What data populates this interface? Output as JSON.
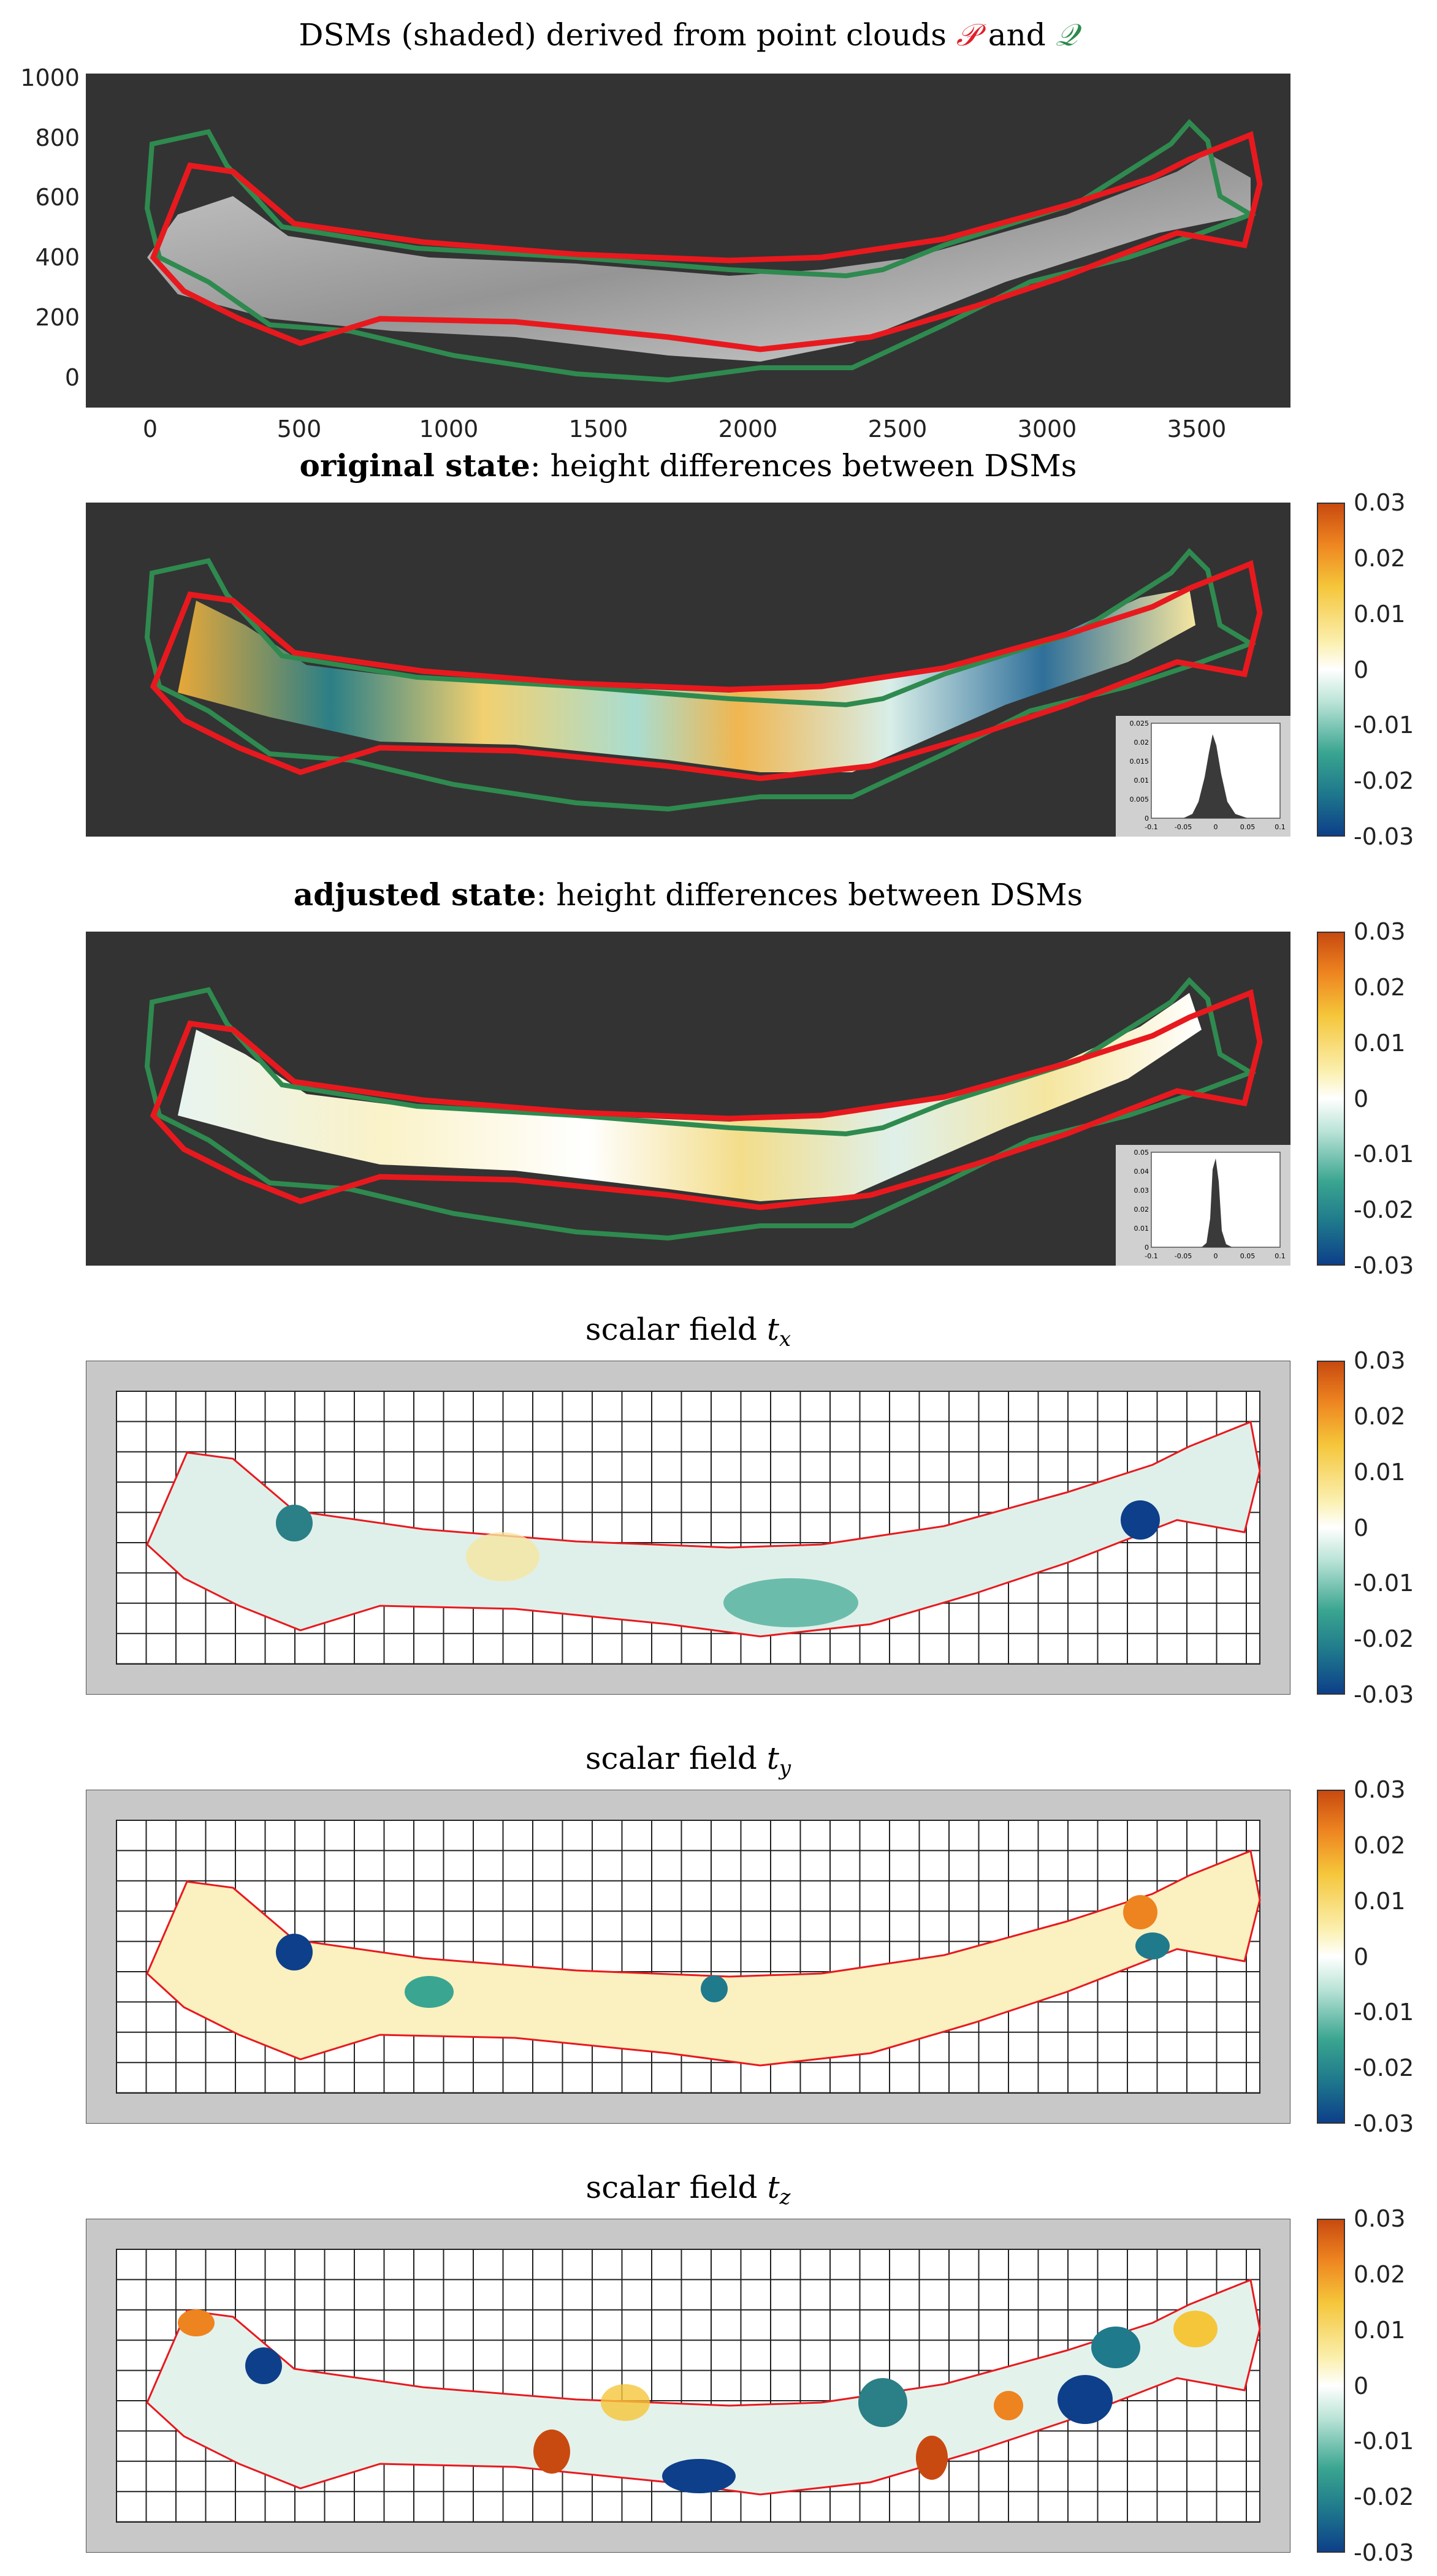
{
  "panels": [
    {
      "title_pre": "DSMs (shaded) derived from point clouds ",
      "title_p": "𝒫",
      "title_and": " and ",
      "title_q": "𝒬",
      "y_ticks": [
        "1000",
        "800",
        "600",
        "400",
        "200",
        "0"
      ],
      "x_ticks": [
        "0",
        "500",
        "1000",
        "1500",
        "2000",
        "2500",
        "3000",
        "3500"
      ]
    },
    {
      "title_bold": "original state",
      "title_rest": ": height differences between DSMs"
    },
    {
      "title_bold": "adjusted state",
      "title_rest": ": height differences between DSMs"
    },
    {
      "title_pre": "scalar field ",
      "title_var": "t",
      "title_sub": "x"
    },
    {
      "title_pre": "scalar field ",
      "title_var": "t",
      "title_sub": "y"
    },
    {
      "title_pre": "scalar field ",
      "title_var": "t",
      "title_sub": "z"
    }
  ],
  "colorbar": {
    "ticks": [
      "0.03",
      "0.02",
      "0.01",
      "0",
      "-0.01",
      "-0.02",
      "-0.03"
    ]
  },
  "hist_original": {
    "y_ticks": [
      "0.025",
      "0.02",
      "0.015",
      "0.01",
      "0.005",
      "0"
    ],
    "x_ticks": [
      "-0.1",
      "-0.05",
      "0",
      "0.05",
      "0.1"
    ]
  },
  "hist_adjusted": {
    "y_ticks": [
      "0.05",
      "0.04",
      "0.03",
      "0.02",
      "0.01",
      "0"
    ],
    "x_ticks": [
      "-0.1",
      "-0.05",
      "0",
      "0.05",
      "0.1"
    ]
  },
  "colors": {
    "outline_p": "#e8191e",
    "outline_q": "#2f8a4f",
    "dark_bg": "#333333",
    "grid_frame": "#c8c8c8"
  }
}
